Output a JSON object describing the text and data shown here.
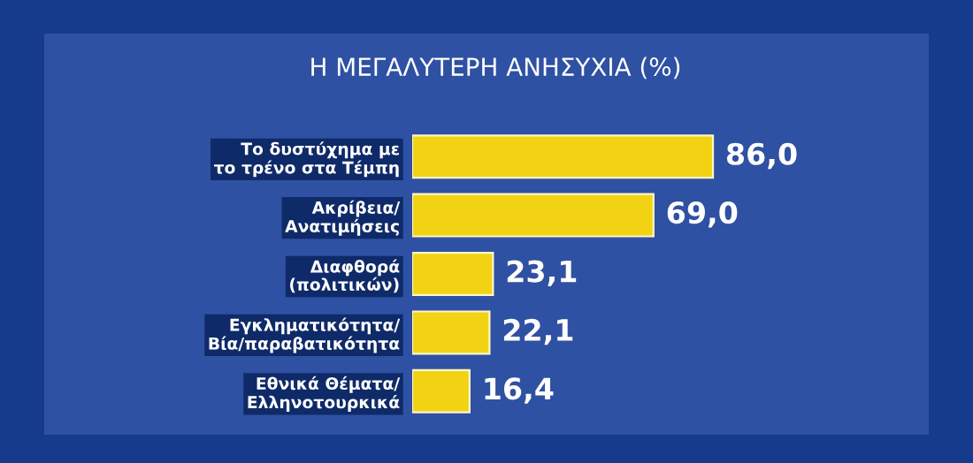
{
  "chart_data": {
    "type": "bar",
    "orientation": "horizontal",
    "title": "Η ΜΕΓΑΛΥΤΕΡΗ ΑΝΗΣΥΧΙΑ (%)",
    "categories": [
      "Το δυστύχημα με\nτο τρένο στα Τέμπη",
      "Ακρίβεια/\nΑνατιμήσεις",
      "Διαφθορά\n(πολιτικών)",
      "Εγκληματικότητα/\nΒία/παραβατικότητα",
      "Εθνικά Θέματα/\nΕλληνοτουρκικά"
    ],
    "values": [
      86.0,
      69.0,
      23.1,
      22.1,
      16.4
    ],
    "value_labels": [
      "86,0",
      "69,0",
      "23,1",
      "22,1",
      "16,4"
    ],
    "color": "#f2d314",
    "tick_labels": "y"
  }
}
